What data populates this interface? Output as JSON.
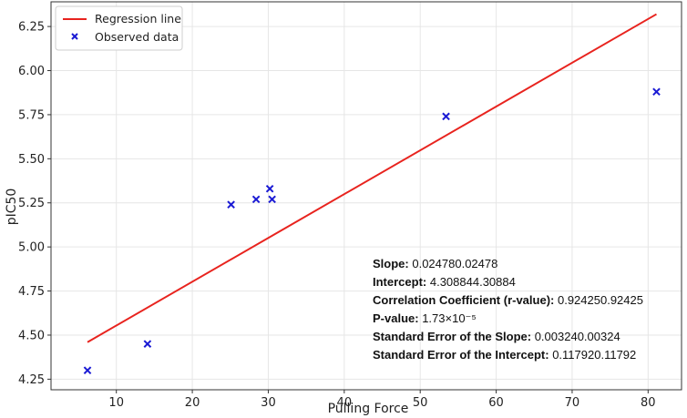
{
  "chart_data": {
    "type": "scatter",
    "xlabel": "Pulling Force",
    "ylabel": "pIC50",
    "xlim": [
      1.4,
      84.4
    ],
    "ylim": [
      4.19,
      6.39
    ],
    "x_ticks": [
      10,
      20,
      30,
      40,
      50,
      60,
      70,
      80
    ],
    "y_ticks": [
      4.25,
      4.5,
      4.75,
      5.0,
      5.25,
      5.5,
      5.75,
      6.0,
      6.25
    ],
    "x_tick_labels": [
      "10",
      "20",
      "30",
      "40",
      "50",
      "60",
      "70",
      "80"
    ],
    "y_tick_labels": [
      "4.25",
      "4.50",
      "4.75",
      "5.00",
      "5.25",
      "5.50",
      "5.75",
      "6.00",
      "6.25"
    ],
    "grid": true,
    "legend_position": "top-left",
    "series": [
      {
        "name": "Regression line",
        "kind": "line",
        "color": "#e8231e",
        "x": [
          6.2,
          81.1
        ],
        "y": [
          4.46,
          6.32
        ]
      },
      {
        "name": "Observed data",
        "kind": "scatter",
        "marker": "x",
        "color": "#1a1ad4",
        "x": [
          6.2,
          14.1,
          25.1,
          28.4,
          30.2,
          30.5,
          53.4,
          81.1
        ],
        "y": [
          4.3,
          4.45,
          5.24,
          5.27,
          5.33,
          5.27,
          5.74,
          5.88
        ]
      }
    ],
    "annotations": [
      {
        "label": "Slope:",
        "value": "0.024780.02478"
      },
      {
        "label": "Intercept:",
        "value": "4.308844.30884"
      },
      {
        "label": "Correlation Coefficient (r-value):",
        "value": "0.924250.92425"
      },
      {
        "label": "P-value:",
        "value": "1.73×10⁻⁵"
      },
      {
        "label": "Standard Error of the Slope:",
        "value": "0.003240.00324"
      },
      {
        "label": "Standard Error of the Intercept:",
        "value": "0.117920.11792"
      }
    ]
  }
}
